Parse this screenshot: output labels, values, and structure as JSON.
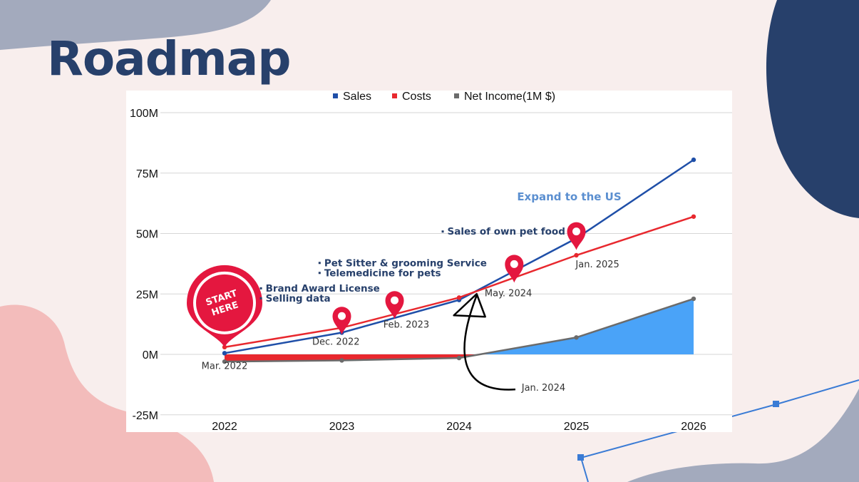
{
  "slide": {
    "title": "Roadmap"
  },
  "chart_data": {
    "type": "line",
    "title": "",
    "xlabel": "",
    "ylabel": "",
    "categories": [
      "2022",
      "2023",
      "2024",
      "2025",
      "2026"
    ],
    "x": [
      2022,
      2023,
      2024,
      2025,
      2026
    ],
    "y_ticks": [
      "100M",
      "75M",
      "50M",
      "25M",
      "0M",
      "-25M"
    ],
    "y_tick_values": [
      100,
      75,
      50,
      25,
      0,
      -25
    ],
    "ylim": [
      -25,
      100
    ],
    "grid": true,
    "legend": {
      "placement": "top",
      "entries": [
        "Sales",
        "Costs",
        "Net Income(1M $)"
      ]
    },
    "series": [
      {
        "name": "Sales",
        "values": [
          0.5,
          9,
          22.5,
          48,
          80.5
        ],
        "color": "#1f4fa8",
        "kind": "line"
      },
      {
        "name": "Costs",
        "values": [
          3,
          11,
          23.5,
          41,
          57
        ],
        "color": "#e8282e",
        "kind": "line"
      },
      {
        "name": "Net Income(1M $)",
        "values": [
          -3,
          -2.5,
          -1.5,
          7,
          23
        ],
        "color": "#6b6b6b",
        "kind": "area",
        "area_color": "#4aa3f8",
        "negative_color": "#e8282e"
      }
    ],
    "annotations": {
      "dates": [
        {
          "text": "Mar. 2022",
          "x": 2022,
          "y": -6
        },
        {
          "text": "Dec. 2022",
          "x": 2022.95,
          "y": 4
        },
        {
          "text": "Feb. 2023",
          "x": 2023.55,
          "y": 11
        },
        {
          "text": "May. 2024",
          "x": 2024.42,
          "y": 24
        },
        {
          "text": "Jan. 2024",
          "x": 2024.72,
          "y": -15
        },
        {
          "text": "Jan. 2025",
          "x": 2025.18,
          "y": 36
        }
      ],
      "notes": [
        {
          "lines": [
            "Brand Award License",
            "Selling data"
          ],
          "x": 2022.35,
          "y": 26
        },
        {
          "lines": [
            "Pet Sitter & grooming Service",
            " Telemedicine for pets"
          ],
          "x": 2022.85,
          "y": 36.5
        },
        {
          "lines": [
            "Sales of own pet food"
          ],
          "x": 2023.9,
          "y": 49.5
        }
      ],
      "headline": {
        "text": "Expand to the US",
        "x": 2025,
        "y": 62
      },
      "start_badge": {
        "lines": [
          "START",
          "HERE"
        ],
        "x": 2022,
        "y": 3
      },
      "pins": [
        {
          "x": 2023,
          "y": 13.5
        },
        {
          "x": 2023.45,
          "y": 20
        },
        {
          "x": 2024.47,
          "y": 35
        },
        {
          "x": 2025,
          "y": 48.5
        }
      ],
      "arrow": {
        "from": {
          "x": 2024.48,
          "y": -14.5
        },
        "to": {
          "x": 2024.15,
          "y": 25
        }
      }
    }
  }
}
